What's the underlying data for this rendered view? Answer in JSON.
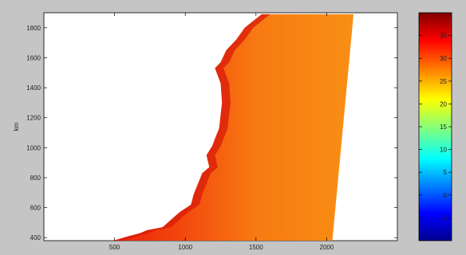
{
  "chart_data": {
    "type": "heatmap",
    "title": "",
    "xlabel": "",
    "ylabel": "km",
    "xlim": [
      0,
      2500
    ],
    "ylim": [
      380,
      1900
    ],
    "x_ticks": [
      "500",
      "1000",
      "1500",
      "2000"
    ],
    "x_tick_values": [
      500,
      1000,
      1500,
      2000
    ],
    "y_ticks": [
      "400",
      "600",
      "800",
      "1000",
      "1200",
      "1400",
      "1600",
      "1800"
    ],
    "y_tick_values": [
      400,
      600,
      800,
      1000,
      1200,
      1400,
      1600,
      1800
    ],
    "colorbar": {
      "colormap": "jet",
      "range": [
        -10,
        40
      ],
      "ticks": [
        "35",
        "30",
        "25",
        "20",
        "15",
        "10",
        "5",
        "0",
        "-5"
      ],
      "tick_values": [
        35,
        30,
        25,
        20,
        15,
        10,
        5,
        0,
        -5
      ]
    },
    "grid": false,
    "data_region": {
      "description_points_km": [
        [
          1540,
          1890
        ],
        [
          2190,
          1890
        ],
        [
          2040,
          380
        ],
        [
          500,
          380
        ]
      ],
      "coast_x": [
        1540,
        1460,
        1420,
        1360,
        1290,
        1250,
        1210,
        1250,
        1260,
        1250,
        1240,
        1210,
        1190,
        1150,
        1170,
        1120,
        1090,
        1060,
        1040,
        960,
        900,
        840,
        730,
        680,
        600,
        510,
        480
      ],
      "coast_y": [
        1890,
        1830,
        1800,
        1720,
        1650,
        1570,
        1530,
        1430,
        1300,
        1220,
        1130,
        1060,
        1010,
        950,
        870,
        830,
        760,
        690,
        620,
        570,
        520,
        470,
        450,
        430,
        410,
        385,
        380
      ],
      "right_edge_x": [
        2190,
        2040
      ],
      "value_range_c": [
        27,
        36
      ],
      "coastal_value_c": 34,
      "offshore_value_c": 29
    }
  }
}
